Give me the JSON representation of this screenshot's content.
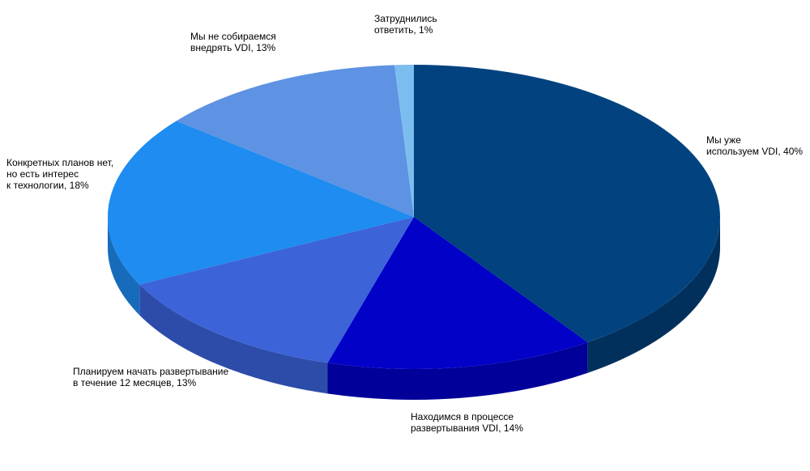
{
  "chart_data": {
    "type": "pie",
    "title": "",
    "slices": [
      {
        "label_lines": [
          "Мы уже",
          "используем VDI, 40%"
        ],
        "value": 40,
        "color": "#02437f",
        "side_color": "#01305c"
      },
      {
        "label_lines": [
          "Находимся в процессе",
          "развертывания VDI, 14%"
        ],
        "value": 14,
        "color": "#0101c8",
        "side_color": "#01019a"
      },
      {
        "label_lines": [
          "Планируем начать развертывание",
          "в течение 12 месяцев, 13%"
        ],
        "value": 13,
        "color": "#3c63d7",
        "side_color": "#2d4caa"
      },
      {
        "label_lines": [
          "Конкретных планов нет,",
          "но есть интерес",
          "к технологии, 18%"
        ],
        "value": 18,
        "color": "#1e8cf0",
        "side_color": "#166cbb"
      },
      {
        "label_lines": [
          "Мы не собираемся",
          "внедрять VDI, 13%"
        ],
        "value": 13,
        "color": "#5e92e2",
        "side_color": "#4570b3"
      },
      {
        "label_lines": [
          "Затруднились",
          "ответить, 1%"
        ],
        "value": 1,
        "color": "#7cbdf0",
        "side_color": "#5b93c2"
      }
    ]
  }
}
